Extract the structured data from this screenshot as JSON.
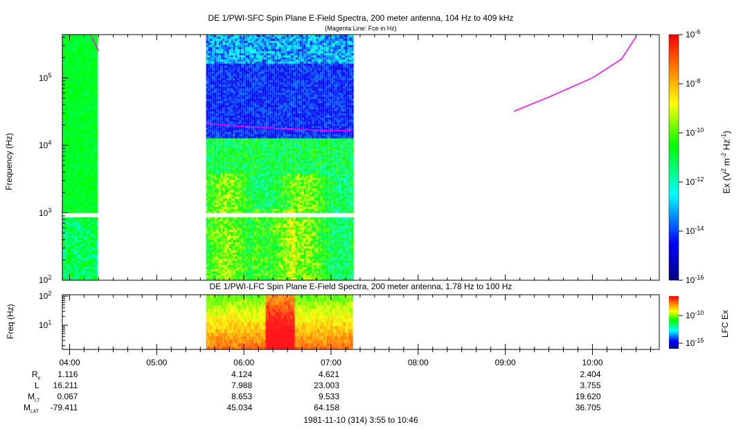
{
  "chart_data": [
    {
      "type": "heatmap",
      "title": "DE 1/PWI-SFC  Spin Plane E-Field Spectra, 200 meter antenna, 104 Hz to 409 kHz",
      "subtitle": "(Magenta Line: Fce in Hz)",
      "ylabel": "Frequency (Hz)",
      "yscale": "log",
      "ylim": [
        100,
        409000
      ],
      "yticks": [
        "10^2",
        "10^3",
        "10^4",
        "10^5"
      ],
      "colorbar": {
        "label": "Ex (V^2 m^-2 Hz^-1)",
        "range": [
          1e-16,
          1e-06
        ],
        "ticks": [
          "10^-6",
          "10^-8",
          "10^-10",
          "10^-12",
          "10^-14",
          "10^-16"
        ]
      },
      "data_intervals": [
        [
          "03:55",
          "04:18"
        ],
        [
          "05:34",
          "07:15"
        ]
      ],
      "fce_line": [
        {
          "times": [
            "04:15",
            "04:20"
          ],
          "freqs": [
            409000,
            250000
          ]
        },
        {
          "times": [
            "05:34",
            "06:00",
            "06:30",
            "07:00",
            "07:15"
          ],
          "freqs": [
            21000,
            19000,
            17500,
            16500,
            16500
          ]
        },
        {
          "times": [
            "09:06",
            "09:30",
            "10:00",
            "10:20",
            "10:30"
          ],
          "freqs": [
            32000,
            52000,
            100000,
            190000,
            409000
          ]
        }
      ],
      "fce_color": "#ff00ff"
    },
    {
      "type": "heatmap",
      "title": "DE 1/PWI-LFC  Spin Plane E-Field Spectra, 200 meter antenna, 1.78 Hz to 100 Hz",
      "ylabel": "Freq (Hz)",
      "yscale": "log",
      "ylim": [
        1.78,
        100
      ],
      "yticks": [
        "10^1",
        "10^2"
      ],
      "colorbar": {
        "label": "LFC Ex",
        "ticks": [
          "10^-10",
          "10^-15"
        ]
      },
      "data_intervals": [
        [
          "05:34",
          "07:15"
        ]
      ]
    }
  ],
  "xaxis": {
    "range": [
      "03:55",
      "10:46"
    ],
    "ticks": [
      "04:00",
      "05:00",
      "06:00",
      "07:00",
      "08:00",
      "09:00",
      "10:00"
    ]
  },
  "ephemeris": {
    "rows": [
      {
        "label": "R",
        "sub": "e",
        "values": [
          "1.116",
          "",
          "4.124",
          "4.621",
          "",
          "",
          "2.404"
        ]
      },
      {
        "label": "L",
        "sub": "",
        "values": [
          "16.211",
          "",
          "7.988",
          "23.003",
          "",
          "",
          "3.755"
        ]
      },
      {
        "label": "M",
        "sub": "LT",
        "values": [
          "0.067",
          "",
          "8.653",
          "9.533",
          "",
          "",
          "19.620"
        ]
      },
      {
        "label": "M",
        "sub": "LAT",
        "values": [
          "-79.411",
          "",
          "45.034",
          "64.158",
          "",
          "",
          "36.705"
        ]
      }
    ]
  },
  "footer": "1981-11-10 (314) 3:55 to 10:46"
}
